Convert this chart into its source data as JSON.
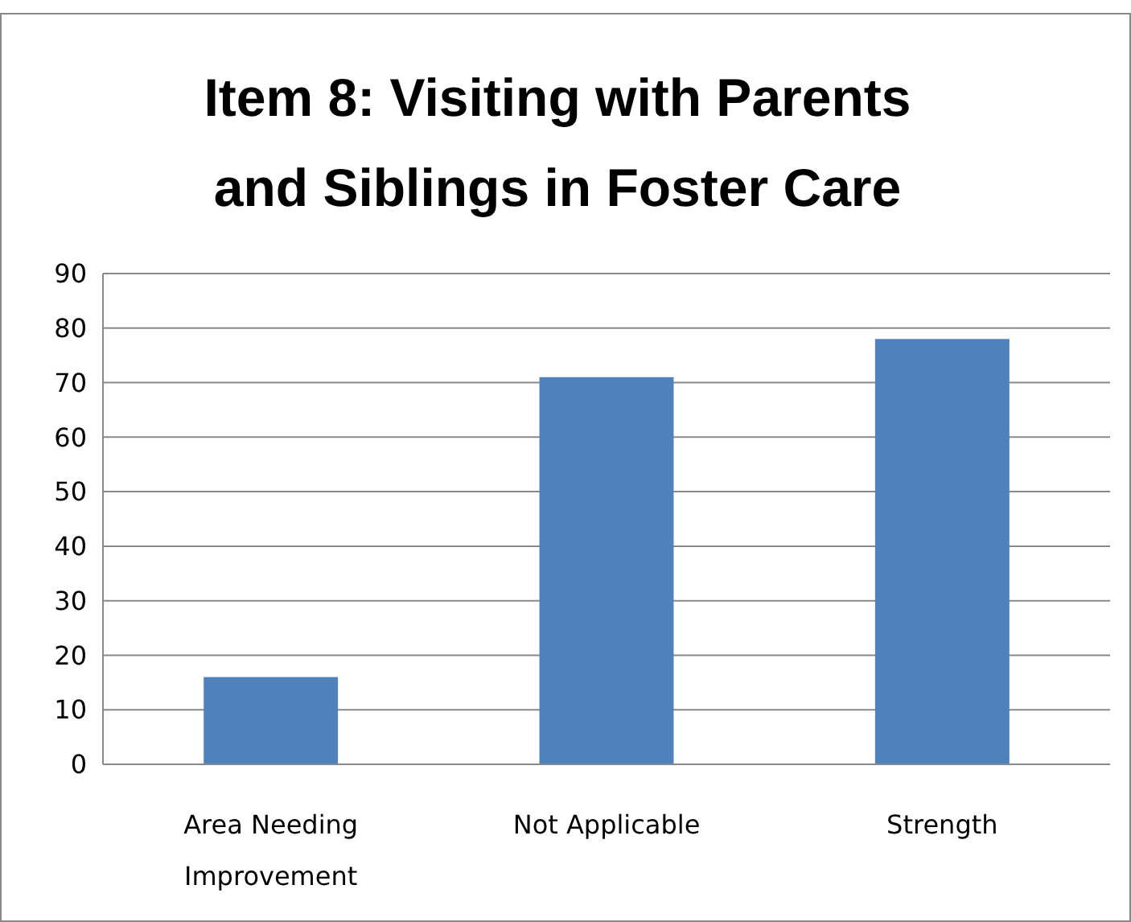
{
  "chart_data": {
    "type": "bar",
    "title": "Item 8: Visiting with Parents and Siblings in Foster Care",
    "categories": [
      "Area Needing Improvement",
      "Not Applicable",
      "Strength"
    ],
    "values": [
      16,
      71,
      78
    ],
    "color": "#4f81bd",
    "ylim": [
      0,
      90
    ],
    "yticks": [
      0,
      10,
      20,
      30,
      40,
      50,
      60,
      70,
      80,
      90
    ],
    "grid": "y"
  }
}
